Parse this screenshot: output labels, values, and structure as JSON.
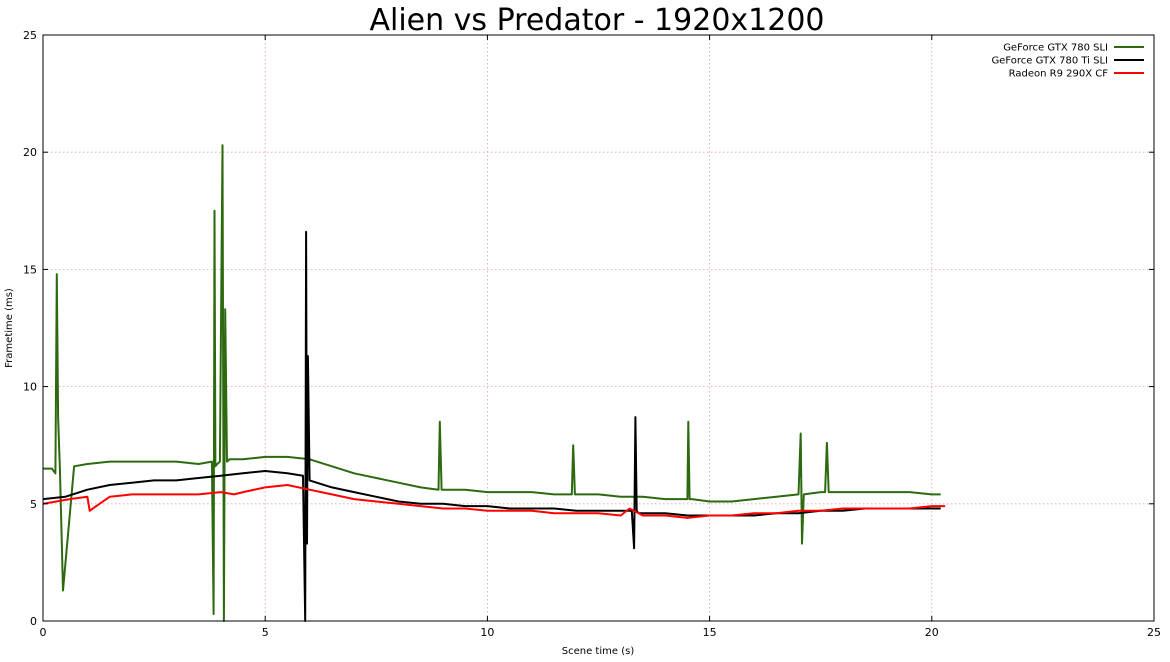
{
  "chart_data": {
    "type": "line",
    "title": "Alien vs Predator - 1920x1200",
    "xlabel": "Scene time (s)",
    "ylabel": "Frametime (ms)",
    "xlim": [
      0,
      25
    ],
    "ylim": [
      0,
      25
    ],
    "x_ticks": [
      "0",
      "5",
      "10",
      "15",
      "20",
      "25"
    ],
    "y_ticks": [
      "0",
      "5",
      "10",
      "15",
      "20",
      "25"
    ],
    "grid": true,
    "legend_position": "top-right",
    "series": [
      {
        "name": "GeForce GTX 780 SLI",
        "color": "#2d6a0f",
        "x": [
          0.0,
          0.2,
          0.28,
          0.31,
          0.34,
          0.38,
          0.45,
          0.7,
          1.0,
          1.5,
          2.0,
          2.5,
          3.0,
          3.5,
          3.8,
          3.84,
          3.86,
          3.88,
          3.92,
          3.98,
          4.04,
          4.07,
          4.1,
          4.14,
          4.2,
          4.5,
          5.0,
          5.5,
          6.0,
          6.5,
          7.0,
          7.5,
          8.0,
          8.5,
          8.9,
          8.93,
          8.97,
          9.5,
          10.0,
          10.5,
          11.0,
          11.5,
          11.9,
          11.93,
          11.97,
          12.5,
          13.0,
          13.5,
          14.0,
          14.5,
          14.52,
          14.55,
          14.6,
          15.0,
          15.5,
          16.0,
          16.5,
          17.0,
          17.05,
          17.08,
          17.12,
          17.5,
          17.6,
          17.64,
          17.68,
          18.0,
          18.5,
          19.0,
          19.5,
          20.0,
          20.2
        ],
        "y": [
          6.5,
          6.5,
          6.3,
          14.8,
          8.7,
          6.5,
          1.3,
          6.6,
          6.7,
          6.8,
          6.8,
          6.8,
          6.8,
          6.7,
          6.8,
          0.3,
          17.5,
          6.6,
          6.7,
          6.8,
          20.3,
          0.0,
          13.3,
          6.8,
          6.9,
          6.9,
          7.0,
          7.0,
          6.9,
          6.6,
          6.3,
          6.1,
          5.9,
          5.7,
          5.6,
          8.5,
          5.6,
          5.6,
          5.5,
          5.5,
          5.5,
          5.4,
          5.4,
          7.5,
          5.4,
          5.4,
          5.3,
          5.3,
          5.2,
          5.2,
          8.5,
          5.2,
          5.2,
          5.1,
          5.1,
          5.2,
          5.3,
          5.4,
          8.0,
          3.3,
          5.4,
          5.5,
          5.5,
          7.6,
          5.5,
          5.5,
          5.5,
          5.5,
          5.5,
          5.4,
          5.4
        ]
      },
      {
        "name": "GeForce GTX 780 Ti SLI",
        "color": "#000000",
        "x": [
          0.0,
          0.5,
          1.0,
          1.5,
          2.0,
          2.5,
          3.0,
          3.5,
          4.0,
          4.5,
          5.0,
          5.5,
          5.85,
          5.9,
          5.92,
          5.94,
          5.96,
          6.0,
          6.5,
          7.0,
          7.5,
          8.0,
          8.5,
          9.0,
          9.5,
          10.0,
          10.5,
          11.0,
          11.5,
          12.0,
          12.5,
          13.0,
          13.25,
          13.3,
          13.33,
          13.36,
          13.4,
          13.5,
          14.0,
          14.5,
          15.0,
          15.5,
          16.0,
          16.5,
          17.0,
          17.5,
          18.0,
          18.5,
          19.0,
          19.5,
          20.0,
          20.2
        ],
        "y": [
          5.2,
          5.3,
          5.6,
          5.8,
          5.9,
          6.0,
          6.0,
          6.1,
          6.2,
          6.3,
          6.4,
          6.3,
          6.2,
          0.0,
          16.6,
          3.3,
          11.3,
          6.0,
          5.7,
          5.5,
          5.3,
          5.1,
          5.0,
          5.0,
          4.9,
          4.9,
          4.8,
          4.8,
          4.8,
          4.7,
          4.7,
          4.7,
          4.7,
          3.1,
          8.7,
          4.7,
          4.6,
          4.6,
          4.6,
          4.5,
          4.5,
          4.5,
          4.5,
          4.6,
          4.6,
          4.7,
          4.7,
          4.8,
          4.8,
          4.8,
          4.8,
          4.8
        ]
      },
      {
        "name": "Radeon R9 290X CF",
        "color": "#ff0000",
        "x": [
          0.0,
          0.3,
          0.6,
          1.0,
          1.05,
          1.2,
          1.5,
          2.0,
          2.5,
          3.0,
          3.5,
          4.0,
          4.3,
          4.5,
          5.0,
          5.5,
          6.0,
          6.5,
          7.0,
          7.5,
          8.0,
          8.5,
          9.0,
          9.5,
          10.0,
          10.5,
          11.0,
          11.5,
          12.0,
          12.5,
          13.0,
          13.2,
          13.5,
          14.0,
          14.5,
          15.0,
          15.5,
          16.0,
          16.5,
          17.0,
          17.5,
          18.0,
          18.5,
          19.0,
          19.5,
          20.0,
          20.3
        ],
        "y": [
          5.0,
          5.1,
          5.2,
          5.3,
          4.7,
          4.9,
          5.3,
          5.4,
          5.4,
          5.4,
          5.4,
          5.5,
          5.4,
          5.5,
          5.7,
          5.8,
          5.6,
          5.4,
          5.2,
          5.1,
          5.0,
          4.9,
          4.8,
          4.8,
          4.7,
          4.7,
          4.7,
          4.6,
          4.6,
          4.6,
          4.5,
          4.8,
          4.5,
          4.5,
          4.4,
          4.5,
          4.5,
          4.6,
          4.6,
          4.7,
          4.7,
          4.8,
          4.8,
          4.8,
          4.8,
          4.9,
          4.9
        ]
      }
    ]
  }
}
